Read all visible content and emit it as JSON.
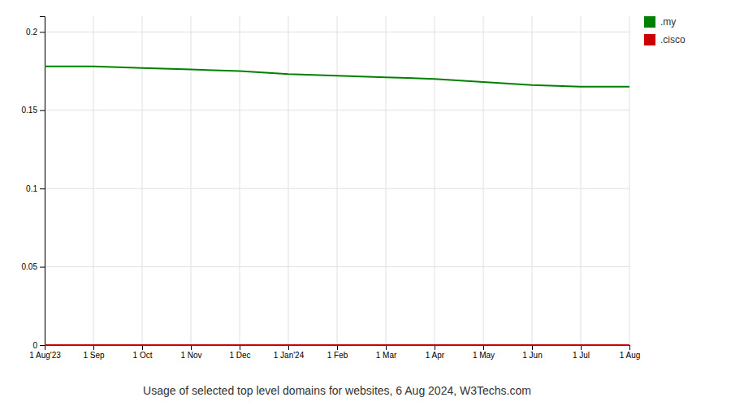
{
  "chart_data": {
    "type": "line",
    "title": "Usage of selected top level domains for websites, 6 Aug 2024, W3Techs.com",
    "categories": [
      "1 Aug'23",
      "1 Sep",
      "1 Oct",
      "1 Nov",
      "1 Dec",
      "1 Jan'24",
      "1 Feb",
      "1 Mar",
      "1 Apr",
      "1 May",
      "1 Jun",
      "1 Jul",
      "1 Aug"
    ],
    "series": [
      {
        "name": ".my",
        "color": "#008000",
        "values": [
          0.178,
          0.178,
          0.177,
          0.176,
          0.175,
          0.173,
          0.172,
          0.171,
          0.17,
          0.168,
          0.166,
          0.165,
          0.165
        ]
      },
      {
        "name": ".cisco",
        "color": "#cc0000",
        "values": [
          0.0,
          0.0,
          0.0,
          0.0,
          0.0,
          0.0,
          0.0,
          0.0,
          0.0,
          0.0,
          0.0,
          0.0,
          0.0
        ]
      }
    ],
    "ylim": [
      0,
      0.21
    ],
    "yticks": [
      0,
      0.05,
      0.1,
      0.15,
      0.2
    ],
    "grid": true,
    "legend": "right"
  }
}
